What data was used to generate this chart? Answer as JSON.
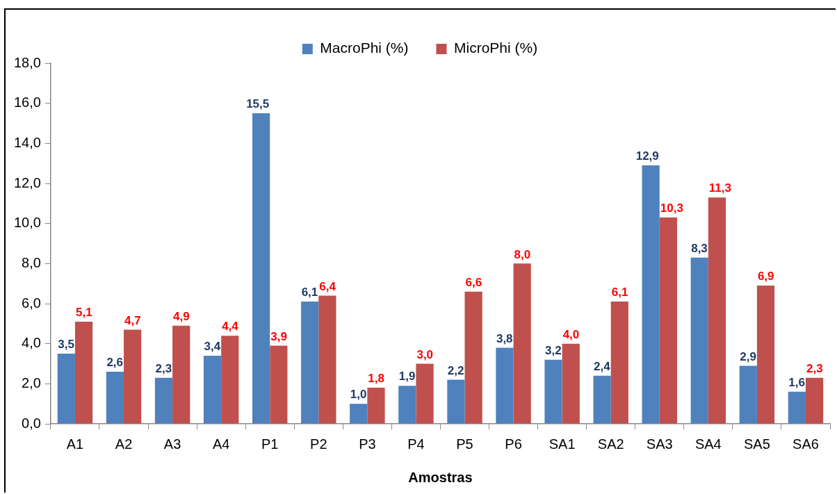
{
  "chart_data": {
    "type": "bar",
    "categories": [
      "A1",
      "A2",
      "A3",
      "A4",
      "P1",
      "P2",
      "P3",
      "P4",
      "P5",
      "P6",
      "SA1",
      "SA2",
      "SA3",
      "SA4",
      "SA5",
      "SA6"
    ],
    "series": [
      {
        "name": "MacroPhi (%)",
        "color": "#4f81bd",
        "values": [
          3.5,
          2.6,
          2.3,
          3.4,
          15.5,
          6.1,
          1.0,
          1.9,
          2.2,
          3.8,
          3.2,
          2.4,
          12.9,
          8.3,
          2.9,
          1.6
        ],
        "value_labels": [
          "3,5",
          "2,6",
          "2,3",
          "3,4",
          "15,5",
          "6,1",
          "1,0",
          "1,9",
          "2,2",
          "3,8",
          "3,2",
          "2,4",
          "12,9",
          "8,3",
          "2,9",
          "1,6"
        ]
      },
      {
        "name": "MicroPhi (%)",
        "color": "#c0504d",
        "values": [
          5.1,
          4.7,
          4.9,
          4.4,
          3.9,
          6.4,
          1.8,
          3.0,
          6.6,
          8.0,
          4.0,
          6.1,
          10.3,
          11.3,
          6.9,
          2.3
        ],
        "value_labels": [
          "5,1",
          "4,7",
          "4,9",
          "4,4",
          "3,9",
          "6,4",
          "1,8",
          "3,0",
          "6,6",
          "8,0",
          "4,0",
          "6,1",
          "10,3",
          "11,3",
          "6,9",
          "2,3"
        ]
      }
    ],
    "xlabel": "Amostras",
    "ylim": [
      0,
      18
    ],
    "yticks": [
      {
        "value": 0,
        "label": "0,0"
      },
      {
        "value": 2,
        "label": "2,0"
      },
      {
        "value": 4,
        "label": "4,0"
      },
      {
        "value": 6,
        "label": "6,0"
      },
      {
        "value": 8,
        "label": "8,0"
      },
      {
        "value": 10,
        "label": "10,0"
      },
      {
        "value": 12,
        "label": "12,0"
      },
      {
        "value": 14,
        "label": "14,0"
      },
      {
        "value": 16,
        "label": "16,0"
      },
      {
        "value": 18,
        "label": "18,0"
      }
    ],
    "grid": false,
    "legend": "top"
  }
}
